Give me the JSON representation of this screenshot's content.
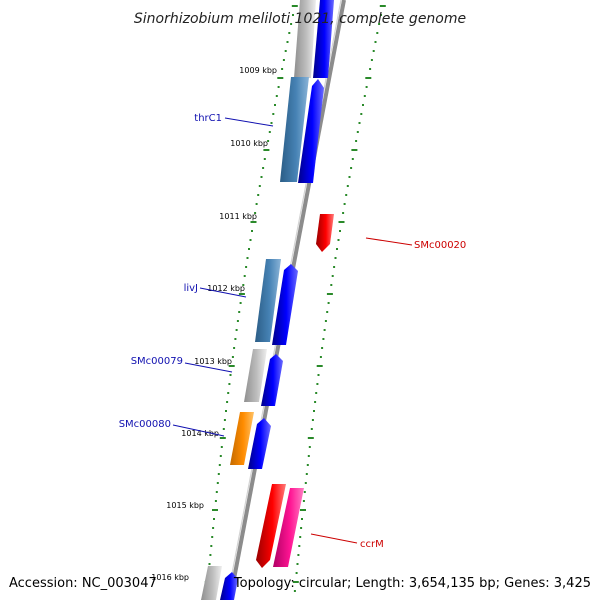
{
  "title": "Sinorhizobium meliloti 1021, complete genome",
  "footer": {
    "accession": "Accession: NC_003047",
    "summary": "Topology: circular; Length: 3,654,135 bp; Genes: 3,425"
  },
  "scale_ticks": [
    "1009 kbp",
    "1010 kbp",
    "1011 kbp",
    "1012 kbp",
    "1013 kbp",
    "1014 kbp",
    "1015 kbp",
    "1016 kbp"
  ],
  "colors": {
    "backbone": "#8c8c8c",
    "tick": "#2a8a2a",
    "forward_cds": "#0000ee",
    "reverse_cds": "#ee0000",
    "steelblue_feature": "#4682b4",
    "gray_feature": "#b8b8b8",
    "orange_feature": "#ff8c00",
    "pink_feature": "#ff1493",
    "label_left": "#1010b0",
    "label_right": "#cc0000"
  },
  "gene_labels": [
    {
      "text": "thrC1",
      "side": "left"
    },
    {
      "text": "livJ",
      "side": "left"
    },
    {
      "text": "SMc00079",
      "side": "left"
    },
    {
      "text": "SMc00080",
      "side": "left"
    },
    {
      "text": "SMc00020",
      "side": "right"
    },
    {
      "text": "ccrM",
      "side": "right"
    }
  ]
}
